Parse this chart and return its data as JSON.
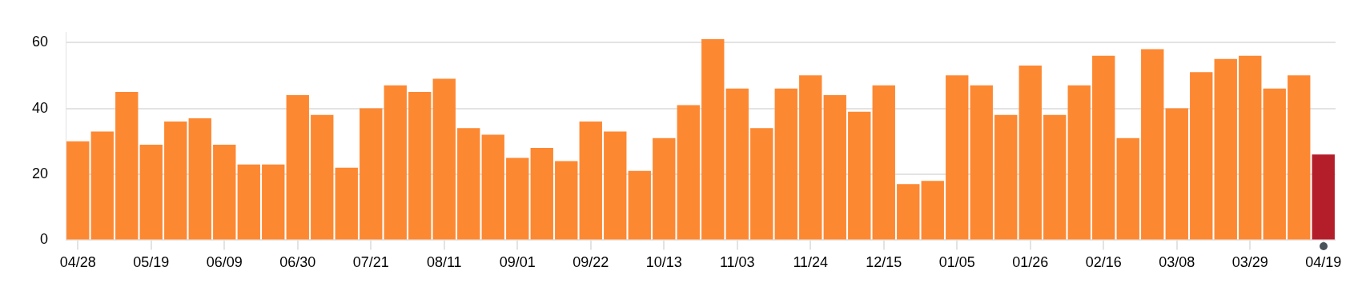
{
  "chart_data": {
    "type": "bar",
    "categories": [
      "04/28",
      null,
      null,
      "05/19",
      null,
      null,
      "06/09",
      null,
      null,
      "06/30",
      null,
      null,
      "07/21",
      null,
      null,
      "08/11",
      null,
      null,
      "09/01",
      null,
      null,
      "09/22",
      null,
      null,
      "10/13",
      null,
      null,
      "11/03",
      null,
      null,
      "11/24",
      null,
      null,
      "12/15",
      null,
      null,
      "01/05",
      null,
      null,
      "01/26",
      null,
      null,
      "02/16",
      null,
      null,
      "03/08",
      null,
      null,
      "03/29",
      null,
      null,
      "04/19"
    ],
    "values": [
      30,
      33,
      45,
      29,
      36,
      37,
      29,
      23,
      23,
      44,
      38,
      22,
      40,
      47,
      45,
      49,
      34,
      32,
      25,
      28,
      24,
      36,
      33,
      21,
      31,
      41,
      61,
      46,
      34,
      46,
      50,
      44,
      39,
      47,
      17,
      18,
      50,
      47,
      38,
      53,
      38,
      47,
      56,
      31,
      58,
      40,
      51,
      55,
      56,
      46,
      50,
      26
    ],
    "colors": [
      "#fd8832",
      "#fd8832",
      "#fd8832",
      "#fd8832",
      "#fd8832",
      "#fd8832",
      "#fd8832",
      "#fd8832",
      "#fd8832",
      "#fd8832",
      "#fd8832",
      "#fd8832",
      "#fd8832",
      "#fd8832",
      "#fd8832",
      "#fd8832",
      "#fd8832",
      "#fd8832",
      "#fd8832",
      "#fd8832",
      "#fd8832",
      "#fd8832",
      "#fd8832",
      "#fd8832",
      "#fd8832",
      "#fd8832",
      "#fd8832",
      "#fd8832",
      "#fd8832",
      "#fd8832",
      "#fd8832",
      "#fd8832",
      "#fd8832",
      "#fd8832",
      "#fd8832",
      "#fd8832",
      "#fd8832",
      "#fd8832",
      "#fd8832",
      "#fd8832",
      "#fd8832",
      "#fd8832",
      "#fd8832",
      "#fd8832",
      "#fd8832",
      "#fd8832",
      "#fd8832",
      "#fd8832",
      "#fd8832",
      "#fd8832",
      "#fd8832",
      "#b31e2a"
    ],
    "ylim": [
      0,
      63
    ],
    "yticks": [
      0,
      20,
      40,
      60
    ],
    "grid": "y",
    "legend": false
  }
}
